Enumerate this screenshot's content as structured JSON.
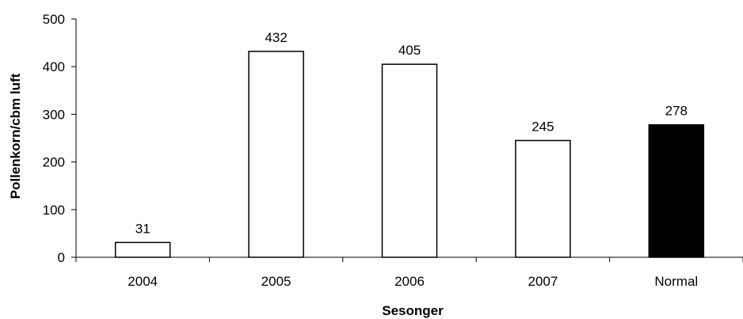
{
  "chart_data": {
    "type": "bar",
    "categories": [
      "2004",
      "2005",
      "2006",
      "2007",
      "Normal"
    ],
    "values": [
      31,
      432,
      405,
      245,
      278
    ],
    "data_labels": [
      "31",
      "432",
      "405",
      "245",
      "278"
    ],
    "bar_fill_colors": [
      "#ffffff",
      "#ffffff",
      "#ffffff",
      "#ffffff",
      "#000000"
    ],
    "bar_stroke_color": "#000000",
    "title": "",
    "xlabel": "Sesonger",
    "ylabel": "Pollenkorn/cbm luft",
    "ylim": [
      0,
      500
    ],
    "yticks": [
      0,
      100,
      200,
      300,
      400,
      500
    ],
    "grid": false,
    "legend": "none"
  }
}
